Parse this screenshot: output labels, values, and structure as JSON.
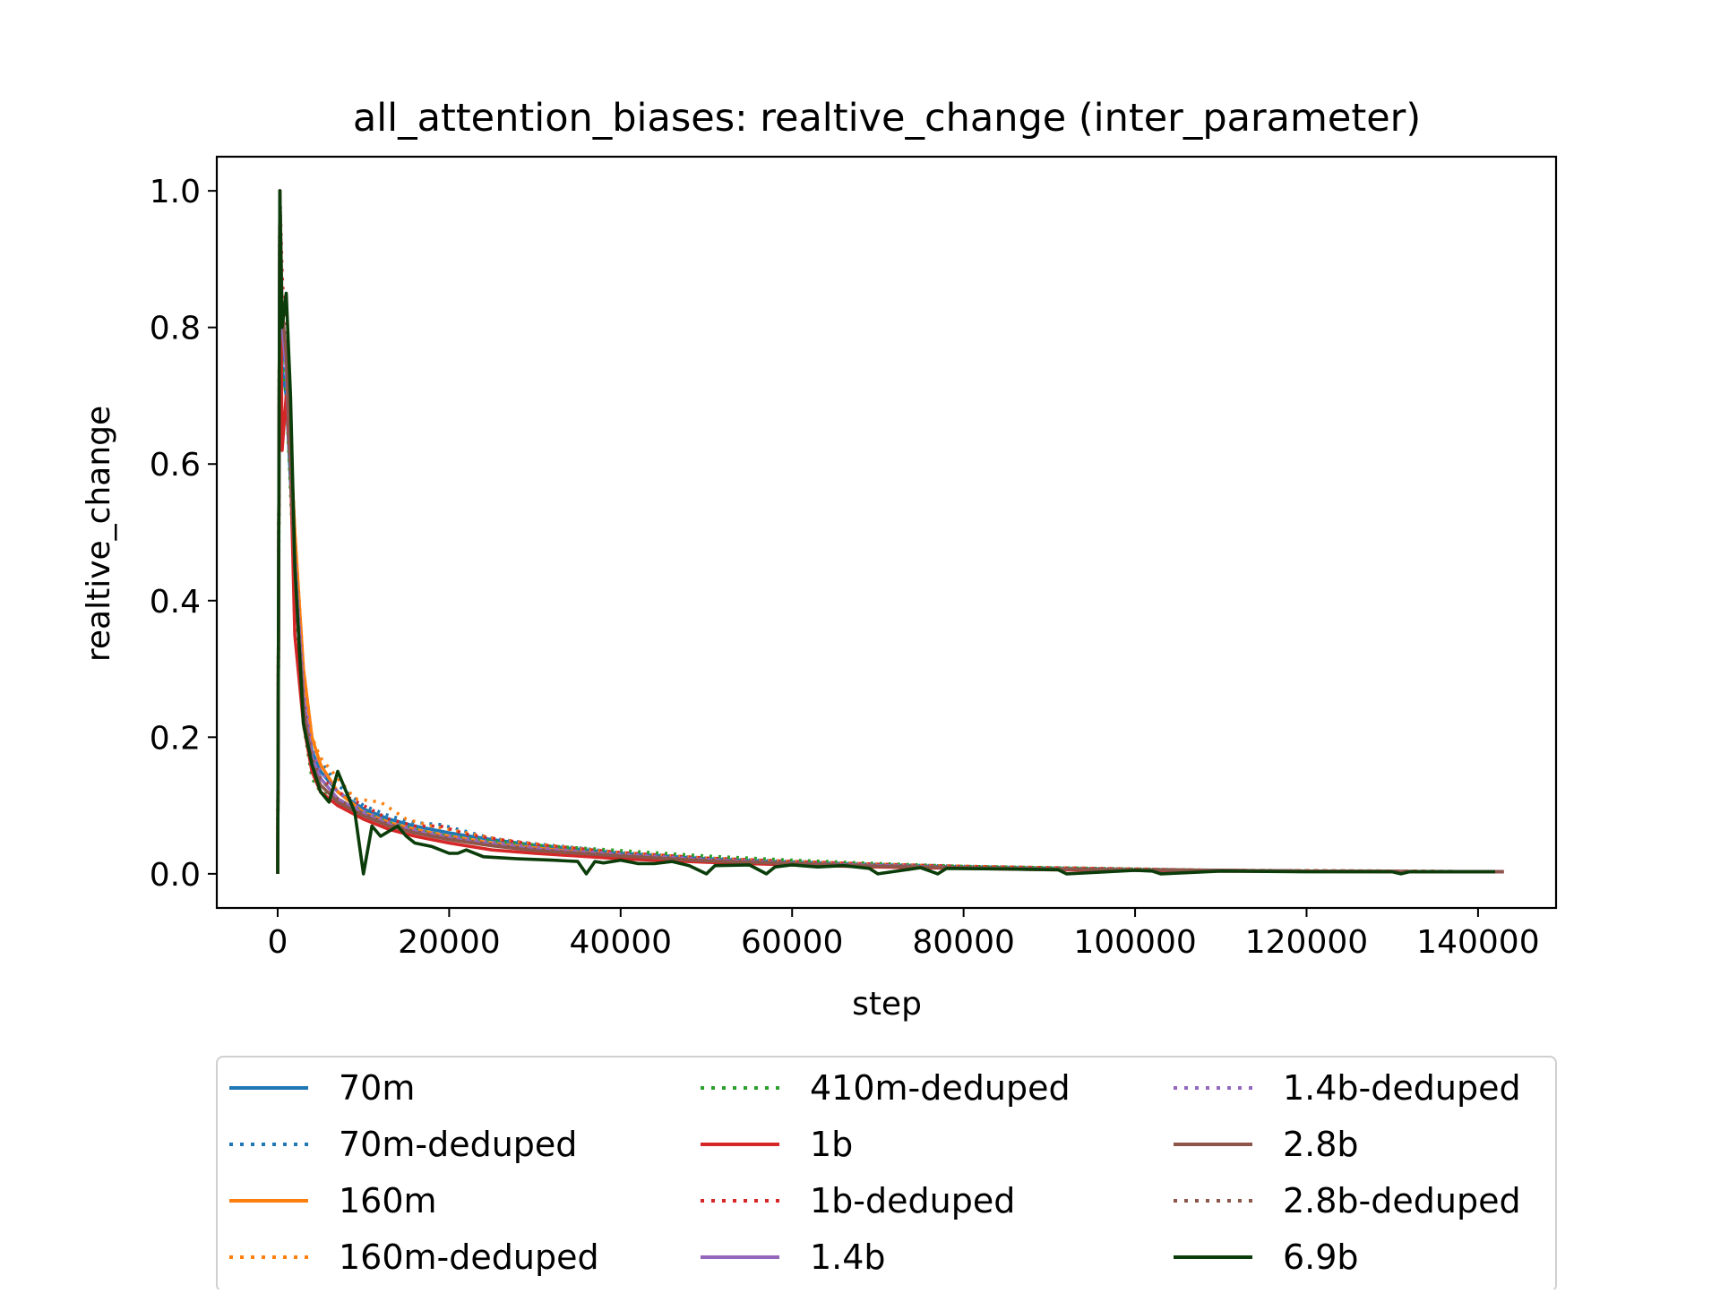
{
  "chart_data": {
    "type": "line",
    "title": "all_attention_biases: realtive_change (inter_parameter)",
    "xlabel": "step",
    "ylabel": "realtive_change",
    "xlim": [
      -7100,
      149100
    ],
    "ylim": [
      -0.05,
      1.05
    ],
    "xticks": [
      0,
      20000,
      40000,
      60000,
      80000,
      100000,
      120000,
      140000
    ],
    "yticks": [
      0.0,
      0.2,
      0.4,
      0.6,
      0.8,
      1.0
    ],
    "xtick_labels": [
      "0",
      "20000",
      "40000",
      "60000",
      "80000",
      "100000",
      "120000",
      "140000"
    ],
    "ytick_labels": [
      "0.0",
      "0.2",
      "0.4",
      "0.6",
      "0.8",
      "1.0"
    ],
    "grid": false,
    "legend_position": "below",
    "series": [
      {
        "name": "70m",
        "color": "#1f77b4",
        "dash": "solid",
        "x": [
          0,
          256,
          512,
          1000,
          2000,
          3000,
          4000,
          5000,
          7000,
          10000,
          13000,
          16000,
          20000,
          25000,
          30000,
          35000,
          40000,
          50000,
          60000,
          70000,
          80000,
          90000,
          100000,
          110000,
          120000,
          130000,
          143000
        ],
        "y": [
          0,
          1.0,
          0.74,
          0.7,
          0.45,
          0.25,
          0.18,
          0.15,
          0.12,
          0.095,
          0.08,
          0.07,
          0.06,
          0.05,
          0.042,
          0.036,
          0.03,
          0.022,
          0.017,
          0.013,
          0.01,
          0.008,
          0.006,
          0.005,
          0.004,
          0.0035,
          0.003
        ]
      },
      {
        "name": "70m-deduped",
        "color": "#1f77b4",
        "dash": "dotted",
        "x": [
          0,
          256,
          512,
          1000,
          2000,
          3000,
          4000,
          5000,
          7000,
          10000,
          13000,
          16000,
          19000,
          22000,
          25000,
          30000,
          35000,
          40000,
          50000,
          60000,
          70000,
          80000,
          90000,
          100000,
          110000,
          120000,
          130000,
          143000
        ],
        "y": [
          0,
          1.0,
          0.78,
          0.72,
          0.47,
          0.27,
          0.19,
          0.165,
          0.13,
          0.1,
          0.085,
          0.075,
          0.072,
          0.062,
          0.052,
          0.044,
          0.038,
          0.031,
          0.023,
          0.018,
          0.014,
          0.011,
          0.009,
          0.007,
          0.005,
          0.0045,
          0.004,
          0.003
        ]
      },
      {
        "name": "160m",
        "color": "#ff7f0e",
        "dash": "solid",
        "x": [
          0,
          256,
          512,
          1000,
          2000,
          3000,
          4000,
          5000,
          7000,
          10000,
          13000,
          16000,
          20000,
          25000,
          30000,
          35000,
          40000,
          50000,
          60000,
          70000,
          80000,
          90000,
          100000,
          110000,
          120000,
          130000,
          143000
        ],
        "y": [
          0,
          1.0,
          0.8,
          0.76,
          0.5,
          0.3,
          0.2,
          0.16,
          0.12,
          0.09,
          0.075,
          0.065,
          0.055,
          0.045,
          0.038,
          0.032,
          0.027,
          0.02,
          0.015,
          0.012,
          0.009,
          0.007,
          0.006,
          0.005,
          0.004,
          0.0035,
          0.003
        ]
      },
      {
        "name": "160m-deduped",
        "color": "#ff7f0e",
        "dash": "dotted",
        "x": [
          0,
          256,
          512,
          1000,
          2000,
          3000,
          4000,
          5000,
          7000,
          9000,
          12000,
          15000,
          18000,
          22000,
          26000,
          30000,
          35000,
          40000,
          50000,
          60000,
          70000,
          80000,
          90000,
          100000,
          110000,
          120000,
          130000,
          143000
        ],
        "y": [
          0,
          1.0,
          0.8,
          0.78,
          0.5,
          0.3,
          0.2,
          0.17,
          0.14,
          0.11,
          0.105,
          0.08,
          0.07,
          0.06,
          0.05,
          0.044,
          0.037,
          0.031,
          0.023,
          0.018,
          0.014,
          0.011,
          0.009,
          0.007,
          0.005,
          0.0045,
          0.004,
          0.003
        ]
      },
      {
        "name": "410m-deduped",
        "color": "#2ca02c",
        "dash": "dotted",
        "x": [
          0,
          256,
          512,
          1000,
          2000,
          3000,
          4000,
          5000,
          7000,
          10000,
          13000,
          16000,
          20000,
          25000,
          30000,
          35000,
          40000,
          50000,
          60000,
          70000,
          80000,
          90000,
          100000,
          110000,
          120000,
          130000,
          143000
        ],
        "y": [
          0,
          0.9,
          0.75,
          0.7,
          0.42,
          0.22,
          0.14,
          0.12,
          0.11,
          0.09,
          0.075,
          0.065,
          0.055,
          0.048,
          0.042,
          0.038,
          0.034,
          0.026,
          0.02,
          0.015,
          0.011,
          0.009,
          0.007,
          0.005,
          0.004,
          0.0035,
          0.003
        ]
      },
      {
        "name": "1b",
        "color": "#d62728",
        "dash": "solid",
        "x": [
          0,
          256,
          512,
          1000,
          1500,
          2000,
          3000,
          4000,
          5000,
          7000,
          10000,
          13000,
          16000,
          20000,
          25000,
          30000,
          35000,
          40000,
          50000,
          60000,
          70000,
          80000,
          90000,
          100000,
          110000,
          120000,
          130000,
          143000
        ],
        "y": [
          0,
          1.0,
          0.62,
          0.7,
          0.6,
          0.35,
          0.22,
          0.15,
          0.12,
          0.1,
          0.08,
          0.065,
          0.055,
          0.045,
          0.035,
          0.03,
          0.026,
          0.022,
          0.017,
          0.013,
          0.01,
          0.008,
          0.006,
          0.005,
          0.004,
          0.0035,
          0.003,
          0.003
        ]
      },
      {
        "name": "1b-deduped",
        "color": "#d62728",
        "dash": "dotted",
        "x": [
          0,
          256,
          512,
          1000,
          2000,
          3000,
          4000,
          5000,
          7000,
          10000,
          13000,
          16000,
          19000,
          22000,
          26000,
          30000,
          35000,
          40000,
          50000,
          60000,
          70000,
          80000,
          90000,
          100000,
          110000,
          120000,
          130000,
          143000
        ],
        "y": [
          0,
          1.0,
          0.88,
          0.76,
          0.46,
          0.26,
          0.17,
          0.14,
          0.12,
          0.1,
          0.08,
          0.07,
          0.07,
          0.058,
          0.05,
          0.043,
          0.037,
          0.031,
          0.023,
          0.018,
          0.014,
          0.011,
          0.009,
          0.007,
          0.005,
          0.0045,
          0.004,
          0.003
        ]
      },
      {
        "name": "1.4b",
        "color": "#9467bd",
        "dash": "solid",
        "x": [
          0,
          256,
          512,
          1000,
          2000,
          3000,
          4000,
          5000,
          7000,
          10000,
          13000,
          16000,
          20000,
          25000,
          30000,
          35000,
          40000,
          50000,
          60000,
          70000,
          80000,
          90000,
          100000,
          110000,
          120000,
          130000,
          143000
        ],
        "y": [
          0,
          1.0,
          0.8,
          0.74,
          0.46,
          0.26,
          0.17,
          0.14,
          0.11,
          0.088,
          0.072,
          0.062,
          0.052,
          0.043,
          0.036,
          0.031,
          0.027,
          0.02,
          0.015,
          0.012,
          0.009,
          0.007,
          0.006,
          0.005,
          0.004,
          0.0035,
          0.003
        ]
      },
      {
        "name": "1.4b-deduped",
        "color": "#9467bd",
        "dash": "dotted",
        "x": [
          0,
          256,
          512,
          1000,
          2000,
          3000,
          4000,
          5000,
          7000,
          10000,
          13000,
          16000,
          20000,
          25000,
          30000,
          35000,
          40000,
          50000,
          60000,
          70000,
          80000,
          90000,
          100000,
          110000,
          120000,
          130000,
          143000
        ],
        "y": [
          0,
          1.0,
          0.82,
          0.75,
          0.47,
          0.27,
          0.18,
          0.15,
          0.12,
          0.092,
          0.075,
          0.065,
          0.055,
          0.046,
          0.039,
          0.033,
          0.029,
          0.021,
          0.016,
          0.012,
          0.009,
          0.007,
          0.006,
          0.005,
          0.004,
          0.0035,
          0.003
        ]
      },
      {
        "name": "2.8b",
        "color": "#8c564b",
        "dash": "solid",
        "x": [
          0,
          256,
          512,
          1000,
          2000,
          3000,
          4000,
          5000,
          7000,
          10000,
          13000,
          16000,
          20000,
          25000,
          30000,
          35000,
          40000,
          50000,
          60000,
          70000,
          80000,
          90000,
          100000,
          110000,
          120000,
          130000,
          143000
        ],
        "y": [
          0,
          1.0,
          0.83,
          0.76,
          0.44,
          0.24,
          0.16,
          0.13,
          0.105,
          0.085,
          0.07,
          0.06,
          0.05,
          0.041,
          0.034,
          0.03,
          0.026,
          0.019,
          0.015,
          0.011,
          0.009,
          0.007,
          0.006,
          0.005,
          0.004,
          0.0035,
          0.003
        ]
      },
      {
        "name": "2.8b-deduped",
        "color": "#8c564b",
        "dash": "dotted",
        "x": [
          0,
          256,
          512,
          1000,
          2000,
          3000,
          4000,
          5000,
          7000,
          10000,
          13000,
          16000,
          20000,
          25000,
          30000,
          35000,
          40000,
          50000,
          60000,
          70000,
          80000,
          90000,
          100000,
          110000,
          120000,
          130000,
          143000
        ],
        "y": [
          0,
          1.0,
          0.84,
          0.77,
          0.45,
          0.25,
          0.17,
          0.14,
          0.11,
          0.088,
          0.072,
          0.062,
          0.052,
          0.043,
          0.036,
          0.031,
          0.027,
          0.02,
          0.015,
          0.012,
          0.009,
          0.007,
          0.006,
          0.005,
          0.004,
          0.0035,
          0.003
        ]
      },
      {
        "name": "6.9b",
        "color": "#0b3d0b",
        "dash": "solid",
        "x": [
          0,
          256,
          512,
          1000,
          1500,
          2000,
          3000,
          4000,
          5000,
          6000,
          7000,
          8000,
          9000,
          10000,
          11000,
          12000,
          14000,
          15000,
          16000,
          18000,
          20000,
          21000,
          22000,
          24000,
          28000,
          32000,
          35000,
          36000,
          37000,
          38000,
          40000,
          42000,
          44000,
          46000,
          48000,
          50000,
          51000,
          55000,
          57000,
          58000,
          60000,
          63000,
          66000,
          69000,
          70000,
          75000,
          77000,
          78000,
          85000,
          91000,
          92000,
          100000,
          102000,
          103000,
          110000,
          120000,
          130000,
          131000,
          132000,
          142000
        ],
        "y": [
          0,
          1.0,
          0.8,
          0.85,
          0.7,
          0.45,
          0.22,
          0.16,
          0.12,
          0.105,
          0.15,
          0.12,
          0.09,
          0.0,
          0.07,
          0.055,
          0.07,
          0.055,
          0.045,
          0.04,
          0.03,
          0.03,
          0.035,
          0.025,
          0.022,
          0.02,
          0.018,
          0.0,
          0.018,
          0.016,
          0.02,
          0.015,
          0.015,
          0.018,
          0.012,
          0.0,
          0.012,
          0.013,
          0.0,
          0.01,
          0.013,
          0.01,
          0.012,
          0.008,
          0.0,
          0.009,
          0.0,
          0.008,
          0.007,
          0.006,
          0.0,
          0.005,
          0.004,
          0.0,
          0.004,
          0.003,
          0.003,
          0.0,
          0.003,
          0.003
        ]
      }
    ]
  }
}
